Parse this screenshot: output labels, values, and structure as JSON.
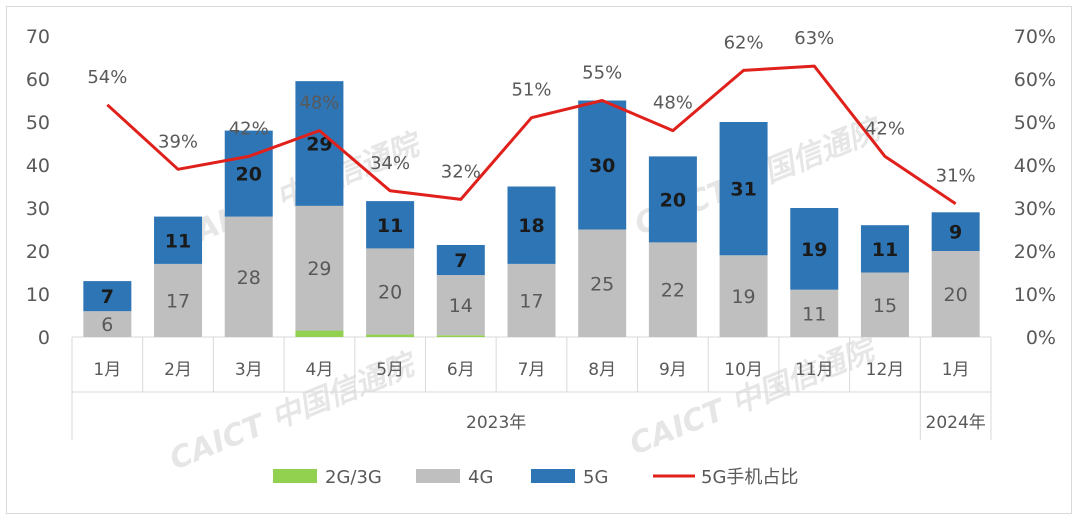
{
  "chart_data": {
    "type": "bar",
    "categories": [
      "1月",
      "2月",
      "3月",
      "4月",
      "5月",
      "6月",
      "7月",
      "8月",
      "9月",
      "10月",
      "11月",
      "12月",
      "1月"
    ],
    "groups": [
      {
        "label": "2023年",
        "span": 12
      },
      {
        "label": "2024年",
        "span": 1
      }
    ],
    "series": [
      {
        "name": "2G/3G",
        "values": [
          0,
          0,
          0,
          1.5,
          0.6,
          0.4,
          0,
          0,
          0,
          0,
          0,
          0,
          0
        ],
        "color": "#92d050"
      },
      {
        "name": "4G",
        "values": [
          6,
          17,
          28,
          29,
          20,
          14,
          17,
          25,
          22,
          19,
          11,
          15,
          20
        ],
        "color": "#bfbfbf"
      },
      {
        "name": "5G",
        "values": [
          7,
          11,
          20,
          29,
          11,
          7,
          18,
          30,
          20,
          31,
          19,
          11,
          9
        ],
        "color": "#2e75b6"
      }
    ],
    "line": {
      "name": "5G手机占比",
      "values": [
        54,
        39,
        42,
        48,
        34,
        32,
        51,
        55,
        48,
        62,
        63,
        42,
        31
      ],
      "labels": [
        "54%",
        "39%",
        "42%",
        "48%",
        "34%",
        "32%",
        "51%",
        "55%",
        "48%",
        "62%",
        "63%",
        "42%",
        "31%"
      ],
      "color": "#e0201b"
    },
    "ylim": [
      0,
      70
    ],
    "y_ticks": [
      "0",
      "10",
      "20",
      "30",
      "40",
      "50",
      "60",
      "70"
    ],
    "y2lim": [
      0,
      70
    ],
    "y2_ticks": [
      "0%",
      "10%",
      "20%",
      "30%",
      "40%",
      "50%",
      "60%",
      "70%"
    ],
    "grid": false,
    "legend_position": "bottom"
  },
  "watermark": "CAICT 中国信通院"
}
